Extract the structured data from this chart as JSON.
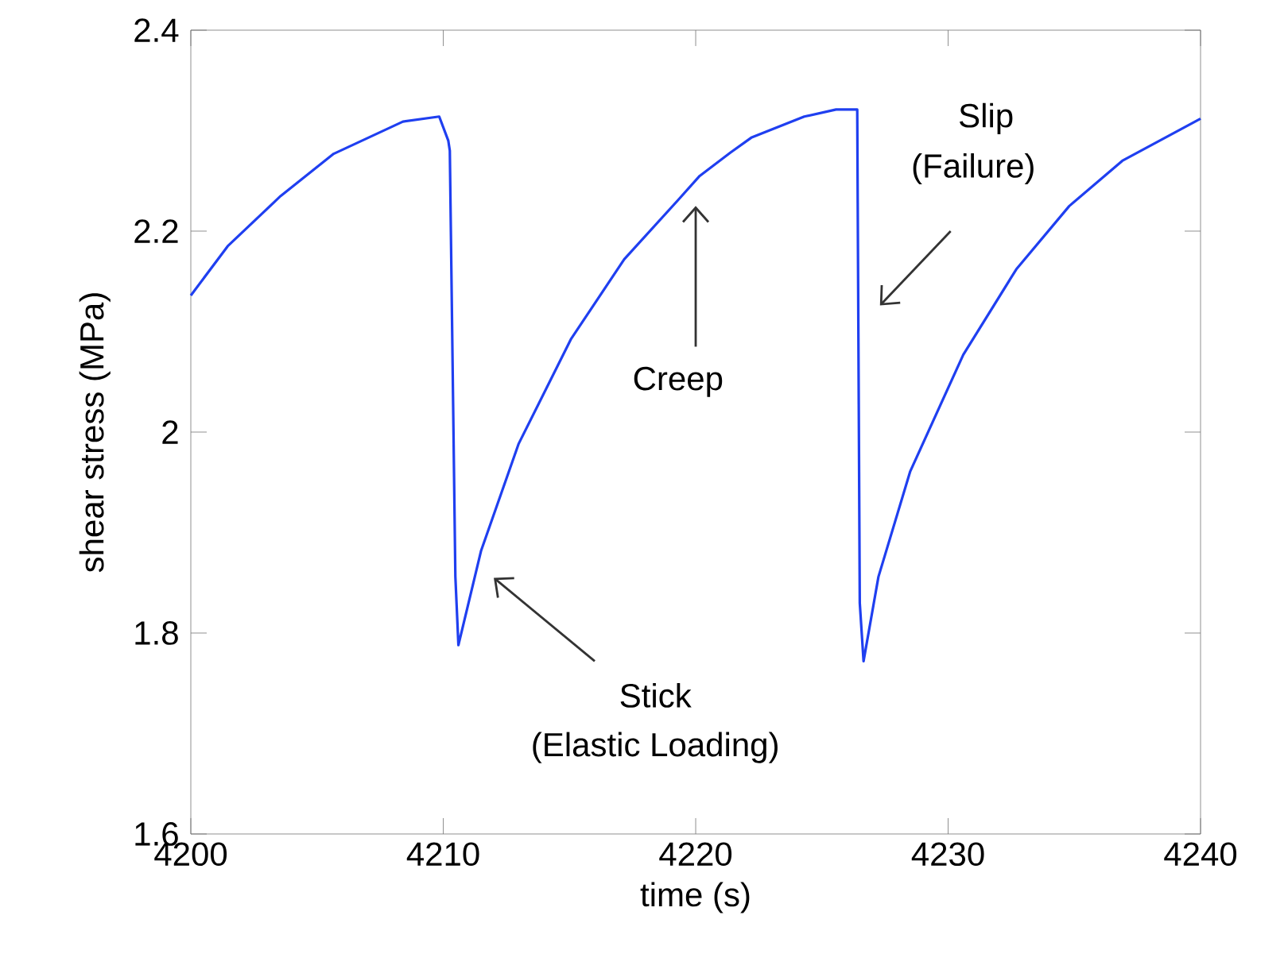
{
  "chart_data": {
    "type": "line",
    "xlabel": "time (s)",
    "ylabel": "shear stress (MPa)",
    "color": "#1f3ff0",
    "x": [
      4200,
      4201.46,
      4203.56,
      4205.66,
      4208.4,
      4209.84,
      4210.2,
      4210.26,
      4210.48,
      4210.6,
      4211.5,
      4212.98,
      4215.07,
      4217.17,
      4219.27,
      4220.16,
      4221.37,
      4222.2,
      4224.3,
      4225.56,
      4226.4,
      4226.5,
      4226.65,
      4227.24,
      4228.5,
      4230.6,
      4232.7,
      4234.8,
      4236.9,
      4240
    ],
    "values": [
      2.136,
      2.185,
      2.235,
      2.277,
      2.309,
      2.314,
      2.29,
      2.28,
      1.856,
      1.788,
      1.882,
      1.988,
      2.093,
      2.172,
      2.23,
      2.255,
      2.278,
      2.293,
      2.314,
      2.321,
      2.321,
      1.83,
      1.772,
      1.856,
      1.961,
      2.077,
      2.162,
      2.225,
      2.27,
      2.312
    ],
    "xlim": [
      4200,
      4240
    ],
    "ylim": [
      1.6,
      2.4
    ],
    "xticks": [
      4200,
      4210,
      4220,
      4230,
      4240
    ],
    "yticks": [
      1.6,
      1.8,
      2,
      2.2,
      2.4
    ],
    "annotations": [
      "Creep",
      "Stick",
      "(Elastic Loading)",
      "Slip",
      "(Failure)"
    ]
  }
}
